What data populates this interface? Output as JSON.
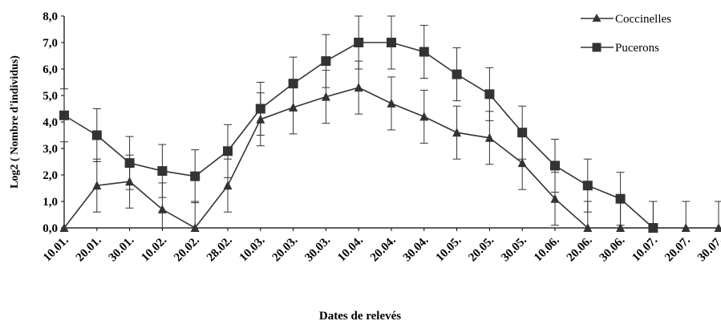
{
  "chart_data": {
    "type": "line",
    "title": "",
    "xlabel": "Dates de relevés",
    "ylabel": "Log2 ( Nombre d'individus)",
    "ylim": [
      0,
      8
    ],
    "yticks": [
      "0,0",
      "1,0",
      "2,0",
      "3,0",
      "4,0",
      "5,0",
      "6,0",
      "7,0",
      "8,0"
    ],
    "grid": false,
    "legend_position": "top-right",
    "categories": [
      "10.01.",
      "20.01.",
      "30.01.",
      "10.02.",
      "20.02.",
      "28.02.",
      "10.03.",
      "20.03.",
      "30.03.",
      "10.04.",
      "20.04.",
      "30.04.",
      "10.05.",
      "20.05.",
      "30.05.",
      "10.06.",
      "20.06.",
      "30.06.",
      "10.07.",
      "20.07.",
      "30.07."
    ],
    "series": [
      {
        "name": "Coccinelles",
        "marker": "triangle",
        "values": [
          0.0,
          1.6,
          1.75,
          0.7,
          0.0,
          1.6,
          4.1,
          4.55,
          4.95,
          5.3,
          4.7,
          4.2,
          3.6,
          3.4,
          2.45,
          1.1,
          0.0,
          0.0,
          0.0,
          0.0,
          0.0
        ],
        "error": [
          0,
          1.0,
          1.0,
          1.0,
          1.0,
          1.0,
          1.0,
          1.0,
          1.0,
          1.0,
          1.0,
          1.0,
          1.0,
          1.0,
          1.0,
          1.0,
          1.0,
          1.0,
          1.0,
          1.0,
          1.0
        ]
      },
      {
        "name": "Pucerons",
        "marker": "square",
        "values": [
          4.25,
          3.5,
          2.45,
          2.15,
          1.95,
          2.9,
          4.5,
          5.45,
          6.3,
          7.0,
          7.0,
          6.65,
          5.8,
          5.05,
          3.6,
          2.35,
          1.6,
          1.1,
          0.0,
          null,
          null
        ],
        "error": [
          1.0,
          1.0,
          1.0,
          1.0,
          1.0,
          1.0,
          1.0,
          1.0,
          1.0,
          1.0,
          1.0,
          1.0,
          1.0,
          1.0,
          1.0,
          1.0,
          1.0,
          1.0,
          1.0,
          0,
          0
        ]
      }
    ]
  }
}
